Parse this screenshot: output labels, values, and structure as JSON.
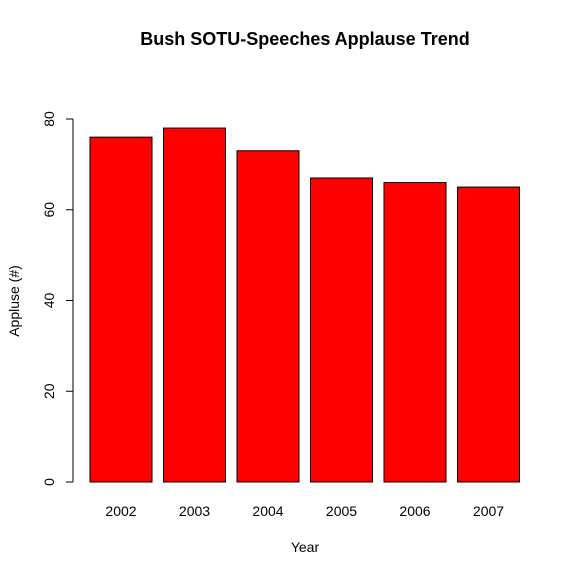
{
  "chart_data": {
    "type": "bar",
    "title": "Bush SOTU-Speeches Applause Trend",
    "xlabel": "Year",
    "ylabel": "Appluse (#)",
    "categories": [
      "2002",
      "2003",
      "2004",
      "2005",
      "2006",
      "2007"
    ],
    "values": [
      76,
      78,
      73,
      67,
      66,
      65
    ],
    "ylim": [
      0,
      80
    ],
    "yticks": [
      0,
      20,
      40,
      60,
      80
    ],
    "bar_color": "#ff0000",
    "bar_border_color": "#000000",
    "grid": false,
    "legend": "none"
  }
}
